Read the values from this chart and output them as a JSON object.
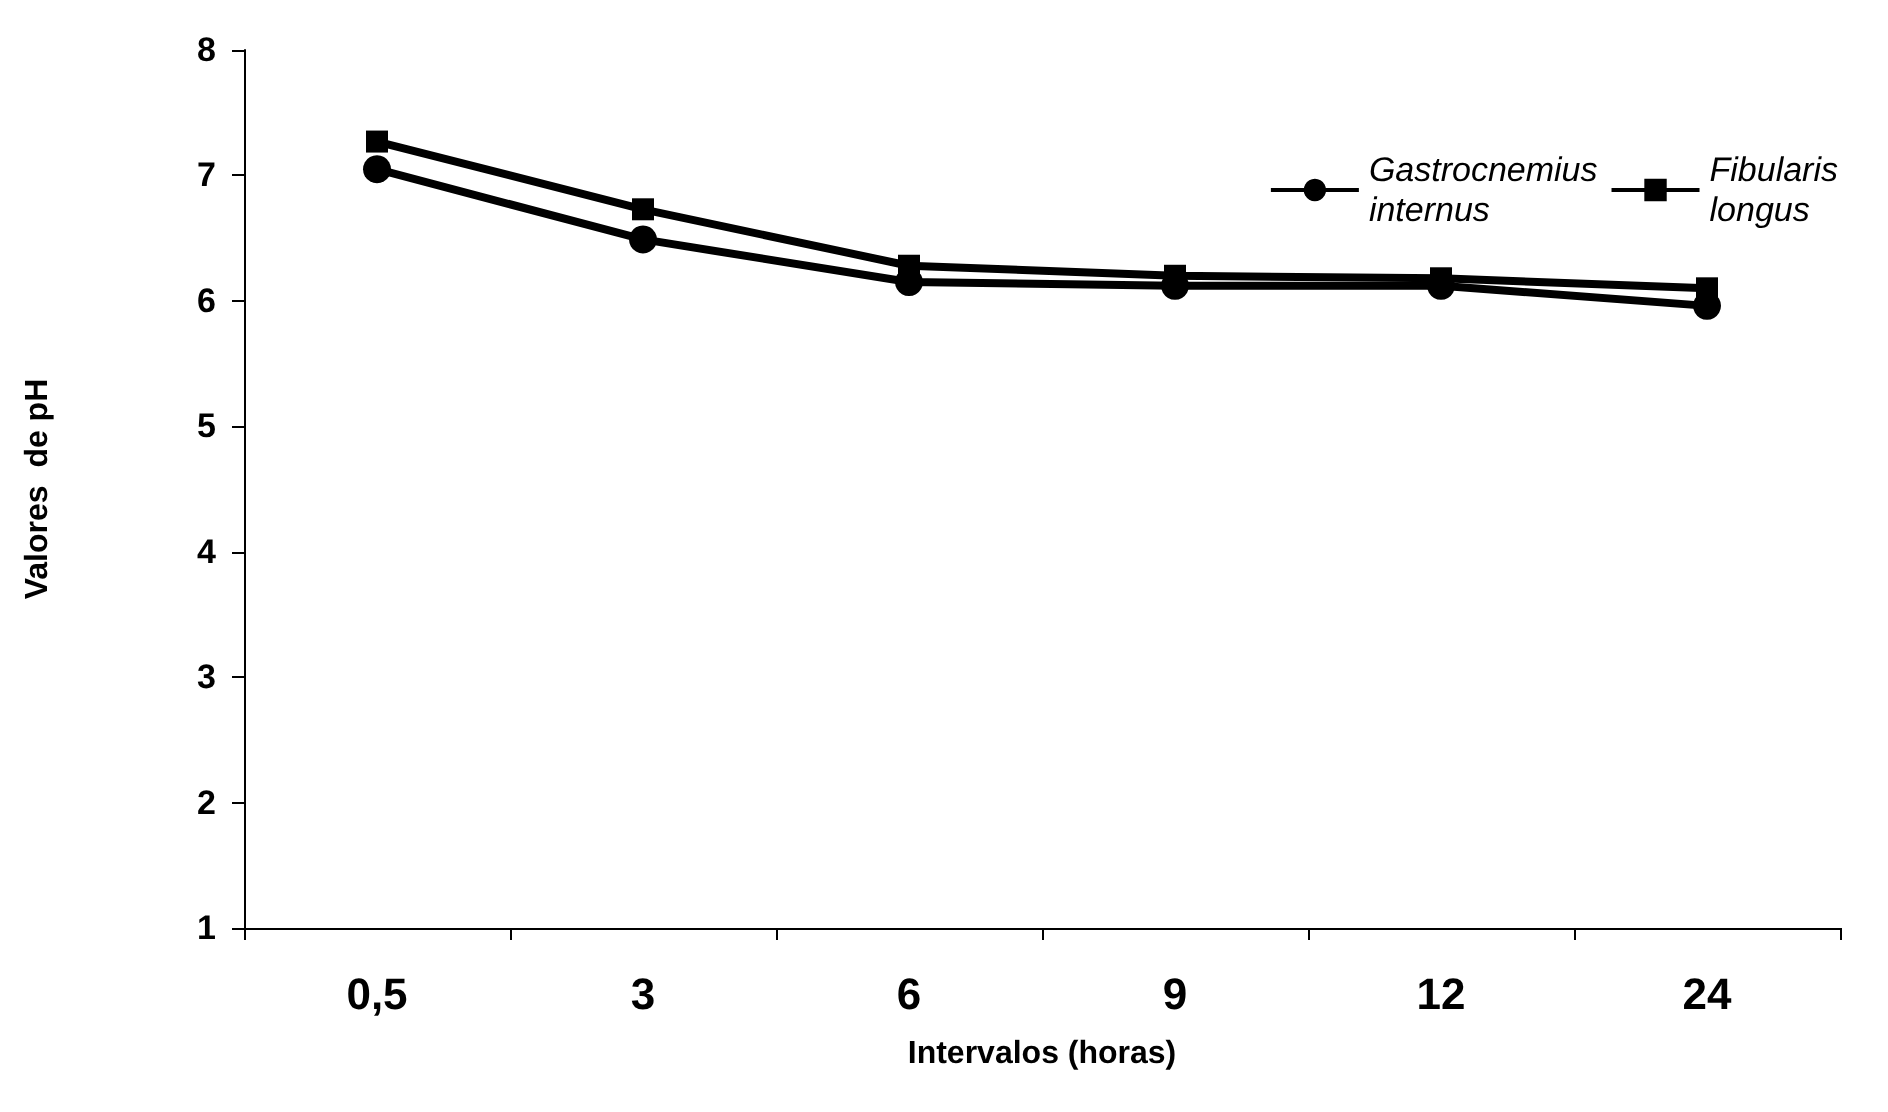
{
  "chart_data": {
    "type": "line",
    "xlabel": "Intervalos (horas)",
    "ylabel": "Valores  de pH",
    "categories": [
      "0,5",
      "3",
      "6",
      "9",
      "12",
      "24"
    ],
    "series": [
      {
        "name": "Gastrocnemius internus",
        "color": "#000000",
        "marker": "circle",
        "values": [
          7.05,
          6.49,
          6.15,
          6.12,
          6.12,
          5.96
        ]
      },
      {
        "name": "Fibularis longus",
        "color": "#000000",
        "marker": "square",
        "values": [
          7.27,
          6.73,
          6.28,
          6.2,
          6.18,
          6.1
        ]
      }
    ],
    "ylim": [
      1,
      8
    ],
    "yticks": [
      1,
      2,
      3,
      4,
      5,
      6,
      7,
      8
    ],
    "grid": false,
    "legend": "top right",
    "line_style": "solid"
  }
}
